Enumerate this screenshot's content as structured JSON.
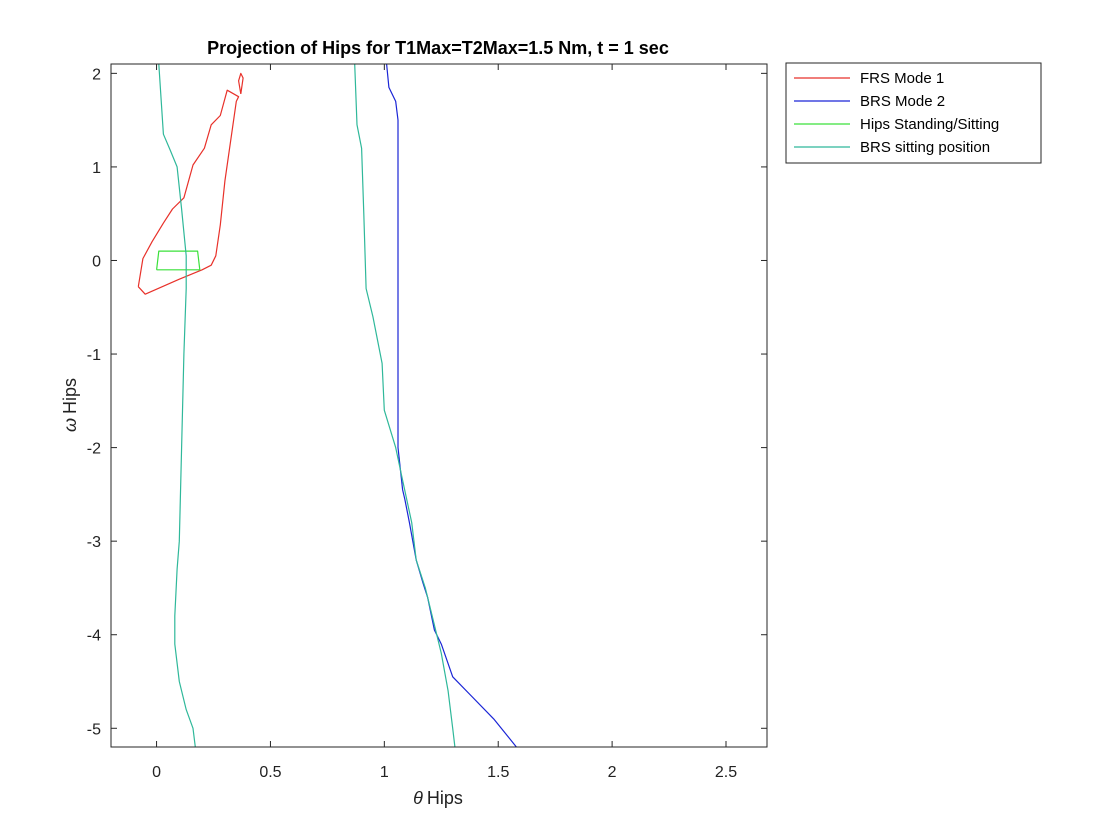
{
  "chart_data": {
    "type": "line",
    "title": "Projection of Hips for T1Max=T2Max=1.5 Nm, t = 1 sec",
    "xlabel_symbol": "θ",
    "xlabel": "Hips",
    "ylabel_symbol": "ω",
    "ylabel": "Hips",
    "xlim": [
      -0.2,
      2.68
    ],
    "ylim": [
      -5.2,
      2.1
    ],
    "xticks": [
      0,
      0.5,
      1,
      1.5,
      2,
      2.5
    ],
    "xtick_labels": [
      "0",
      "0.5",
      "1",
      "1.5",
      "2",
      "2.5"
    ],
    "yticks": [
      2,
      1,
      0,
      -1,
      -2,
      -3,
      -4,
      -5
    ],
    "ytick_labels": [
      "2",
      "1",
      "0",
      "-1",
      "-2",
      "-3",
      "-4",
      "-5"
    ],
    "grid": false,
    "legend_position": "outside-top-right",
    "series": [
      {
        "name": "FRS Mode 1",
        "color": "#e8312a",
        "segments": [
          [
            [
              -0.08,
              -0.28
            ],
            [
              -0.05,
              -0.36
            ],
            [
              0.1,
              -0.2
            ],
            [
              0.2,
              -0.1
            ],
            [
              0.24,
              -0.05
            ],
            [
              0.26,
              0.05
            ],
            [
              0.28,
              0.38
            ],
            [
              0.3,
              0.85
            ],
            [
              0.35,
              1.7
            ],
            [
              0.36,
              1.75
            ],
            [
              0.31,
              1.82
            ],
            [
              0.28,
              1.55
            ],
            [
              0.24,
              1.45
            ],
            [
              0.21,
              1.2
            ],
            [
              0.16,
              1.02
            ],
            [
              0.12,
              0.67
            ],
            [
              0.07,
              0.55
            ],
            [
              0.03,
              0.4
            ],
            [
              -0.02,
              0.2
            ],
            [
              -0.06,
              0.02
            ],
            [
              -0.08,
              -0.28
            ]
          ],
          [
            [
              0.37,
              1.78
            ],
            [
              0.38,
              1.95
            ],
            [
              0.37,
              2.0
            ],
            [
              0.36,
              1.92
            ],
            [
              0.37,
              1.78
            ]
          ]
        ]
      },
      {
        "name": "BRS Mode 2",
        "color": "#1a25d6",
        "segments": [
          [
            [
              1.01,
              2.1
            ],
            [
              1.02,
              1.85
            ],
            [
              1.05,
              1.7
            ],
            [
              1.06,
              1.5
            ],
            [
              1.06,
              1.0
            ],
            [
              1.06,
              0.0
            ],
            [
              1.06,
              -1.0
            ],
            [
              1.06,
              -2.0
            ],
            [
              1.08,
              -2.45
            ],
            [
              1.09,
              -2.55
            ],
            [
              1.11,
              -2.8
            ],
            [
              1.14,
              -3.2
            ],
            [
              1.17,
              -3.45
            ],
            [
              1.19,
              -3.6
            ],
            [
              1.22,
              -3.95
            ],
            [
              1.25,
              -4.1
            ],
            [
              1.3,
              -4.45
            ],
            [
              1.38,
              -4.65
            ],
            [
              1.48,
              -4.9
            ],
            [
              1.58,
              -5.2
            ]
          ]
        ]
      },
      {
        "name": "Hips Standing/Sitting",
        "color": "#3ae03a",
        "segments": [
          [
            [
              0.0,
              -0.1
            ],
            [
              0.01,
              0.1
            ],
            [
              0.18,
              0.1
            ],
            [
              0.19,
              -0.1
            ],
            [
              0.0,
              -0.1
            ]
          ]
        ]
      },
      {
        "name": "BRS sitting position",
        "color": "#2fb89a",
        "segments": [
          [
            [
              0.01,
              2.1
            ],
            [
              0.03,
              1.35
            ],
            [
              0.06,
              1.18
            ],
            [
              0.09,
              1.0
            ],
            [
              0.11,
              0.55
            ],
            [
              0.13,
              0.05
            ],
            [
              0.13,
              -0.3
            ],
            [
              0.12,
              -1.0
            ],
            [
              0.11,
              -2.0
            ],
            [
              0.1,
              -3.0
            ],
            [
              0.09,
              -3.3
            ],
            [
              0.08,
              -3.8
            ],
            [
              0.08,
              -4.1
            ],
            [
              0.1,
              -4.5
            ],
            [
              0.13,
              -4.8
            ],
            [
              0.16,
              -5.0
            ],
            [
              0.17,
              -5.2
            ]
          ],
          [
            [
              0.87,
              2.1
            ],
            [
              0.88,
              1.45
            ],
            [
              0.9,
              1.2
            ],
            [
              0.91,
              0.5
            ],
            [
              0.92,
              -0.3
            ],
            [
              0.95,
              -0.6
            ],
            [
              0.99,
              -1.1
            ],
            [
              1.0,
              -1.6
            ],
            [
              1.05,
              -2.0
            ],
            [
              1.08,
              -2.35
            ],
            [
              1.12,
              -2.8
            ],
            [
              1.14,
              -3.2
            ],
            [
              1.18,
              -3.5
            ],
            [
              1.21,
              -3.8
            ],
            [
              1.25,
              -4.2
            ],
            [
              1.28,
              -4.6
            ],
            [
              1.3,
              -5.0
            ],
            [
              1.31,
              -5.2
            ]
          ]
        ]
      }
    ]
  }
}
